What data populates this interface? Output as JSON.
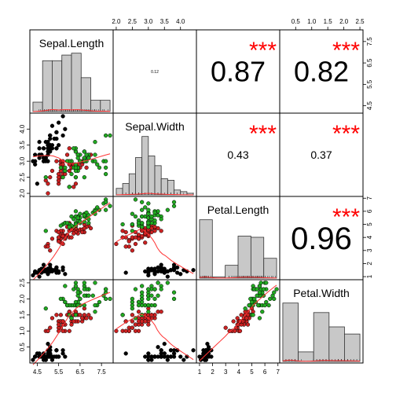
{
  "chart_data": {
    "type": "scatter-matrix",
    "title": "",
    "variables": [
      "Sepal.Length",
      "Sepal.Width",
      "Petal.Length",
      "Petal.Width"
    ],
    "ranges": [
      [
        4.3,
        7.9
      ],
      [
        2.0,
        4.4
      ],
      [
        1.0,
        6.9
      ],
      [
        0.1,
        2.5
      ]
    ],
    "ticks": [
      [
        "4.5",
        "5.5",
        "6.5",
        "7.5"
      ],
      [
        "2.0",
        "2.5",
        "3.0",
        "3.5",
        "4.0"
      ],
      [
        "1",
        "2",
        "3",
        "4",
        "5",
        "6",
        "7"
      ],
      [
        "0.5",
        "1.0",
        "1.5",
        "2.0",
        "2.5"
      ]
    ],
    "tick_values": [
      [
        4.5,
        5.5,
        6.5,
        7.5
      ],
      [
        2.0,
        2.5,
        3.0,
        3.5,
        4.0
      ],
      [
        1,
        2,
        3,
        4,
        5,
        6,
        7
      ],
      [
        0.5,
        1.0,
        1.5,
        2.0,
        2.5
      ]
    ],
    "group_colors": [
      "#000000",
      "#cc2222",
      "#22aa22"
    ],
    "fit_color": "#ff3333",
    "star_color": "#ff0000",
    "correlations": [
      {
        "row": 0,
        "col": 2,
        "value": "0.87",
        "stars": "***",
        "size": 36
      },
      {
        "row": 0,
        "col": 3,
        "value": "0.82",
        "stars": "***",
        "size": 36
      },
      {
        "row": 0,
        "col": 1,
        "value": "0.12",
        "stars": "",
        "size": 5
      },
      {
        "row": 1,
        "col": 2,
        "value": "0.43",
        "stars": "***",
        "size": 14
      },
      {
        "row": 1,
        "col": 3,
        "value": "0.37",
        "stars": "***",
        "size": 14
      },
      {
        "row": 2,
        "col": 3,
        "value": "0.96",
        "stars": "***",
        "size": 40
      }
    ],
    "histograms": [
      {
        "breaks": [
          4.0,
          4.5,
          5.0,
          5.5,
          6.0,
          6.5,
          7.0,
          7.5,
          8.0
        ],
        "counts": [
          5,
          27,
          27,
          30,
          31,
          18,
          6,
          6
        ]
      },
      {
        "breaks": [
          2.0,
          2.2,
          2.4,
          2.6,
          2.8,
          3.0,
          3.2,
          3.4,
          3.6,
          3.8,
          4.0,
          4.2,
          4.4
        ],
        "counts": [
          4,
          7,
          13,
          23,
          36,
          24,
          18,
          10,
          9,
          3,
          2,
          1
        ]
      },
      {
        "breaks": [
          1,
          2,
          3,
          4,
          5,
          6,
          7
        ],
        "counts": [
          50,
          1,
          11,
          36,
          35,
          17
        ]
      },
      {
        "breaks": [
          0.0,
          0.5,
          1.0,
          1.5,
          2.0,
          2.5
        ],
        "counts": [
          49,
          8,
          41,
          29,
          23
        ]
      }
    ],
    "iris": {
      "sepal_length": [
        5.1,
        4.9,
        4.7,
        4.6,
        5.0,
        5.4,
        4.6,
        5.0,
        4.4,
        4.9,
        5.4,
        4.8,
        4.8,
        4.3,
        5.8,
        5.7,
        5.4,
        5.1,
        5.7,
        5.1,
        5.4,
        5.1,
        4.6,
        5.1,
        4.8,
        5.0,
        5.0,
        5.2,
        5.2,
        4.7,
        4.8,
        5.4,
        5.2,
        5.5,
        4.9,
        5.0,
        5.5,
        4.9,
        4.4,
        5.1,
        5.0,
        4.5,
        4.4,
        5.0,
        5.1,
        4.8,
        5.1,
        4.6,
        5.3,
        5.0,
        7.0,
        6.4,
        6.9,
        5.5,
        6.5,
        5.7,
        6.3,
        4.9,
        6.6,
        5.2,
        5.0,
        5.9,
        6.0,
        6.1,
        5.6,
        6.7,
        5.6,
        5.8,
        6.2,
        5.6,
        5.9,
        6.1,
        6.3,
        6.1,
        6.4,
        6.6,
        6.8,
        6.7,
        6.0,
        5.7,
        5.5,
        5.5,
        5.8,
        6.0,
        5.4,
        6.0,
        6.7,
        6.3,
        5.6,
        5.5,
        5.5,
        6.1,
        5.8,
        5.0,
        5.6,
        5.7,
        5.7,
        6.2,
        5.1,
        5.7,
        6.3,
        5.8,
        7.1,
        6.3,
        6.5,
        7.6,
        4.9,
        7.3,
        6.7,
        7.2,
        6.5,
        6.4,
        6.8,
        5.7,
        5.8,
        6.4,
        6.5,
        7.7,
        7.7,
        6.0,
        6.9,
        5.6,
        7.7,
        6.3,
        6.7,
        7.2,
        6.2,
        6.1,
        6.4,
        7.2,
        7.4,
        7.9,
        6.4,
        6.3,
        6.1,
        7.7,
        6.3,
        6.4,
        6.0,
        6.9,
        6.7,
        6.9,
        5.8,
        6.8,
        6.7,
        6.7,
        6.3,
        6.5,
        6.2,
        5.9
      ],
      "sepal_width": [
        3.5,
        3.0,
        3.2,
        3.1,
        3.6,
        3.9,
        3.4,
        3.4,
        2.9,
        3.1,
        3.7,
        3.4,
        3.0,
        3.0,
        4.0,
        4.4,
        3.9,
        3.5,
        3.8,
        3.8,
        3.4,
        3.7,
        3.6,
        3.3,
        3.4,
        3.0,
        3.4,
        3.5,
        3.4,
        3.2,
        3.1,
        3.4,
        4.1,
        4.2,
        3.1,
        3.2,
        3.5,
        3.6,
        3.0,
        3.4,
        3.5,
        2.3,
        3.2,
        3.5,
        3.8,
        3.0,
        3.8,
        3.2,
        3.7,
        3.3,
        3.2,
        3.2,
        3.1,
        2.3,
        2.8,
        2.8,
        3.3,
        2.4,
        2.9,
        2.7,
        2.0,
        3.0,
        2.2,
        2.9,
        2.9,
        3.1,
        3.0,
        2.7,
        2.2,
        2.5,
        3.2,
        2.8,
        2.5,
        2.8,
        2.9,
        3.0,
        2.8,
        3.0,
        2.9,
        2.6,
        2.4,
        2.4,
        2.7,
        2.7,
        3.0,
        3.4,
        3.1,
        2.3,
        3.0,
        2.5,
        2.6,
        3.0,
        2.6,
        2.3,
        2.7,
        3.0,
        2.9,
        2.9,
        2.5,
        2.8,
        3.3,
        2.7,
        3.0,
        2.9,
        3.0,
        3.0,
        2.5,
        2.9,
        2.5,
        3.6,
        3.2,
        2.7,
        3.0,
        2.5,
        2.8,
        3.2,
        3.0,
        3.8,
        2.6,
        2.2,
        3.2,
        2.8,
        2.8,
        2.7,
        3.3,
        3.2,
        2.8,
        3.0,
        2.8,
        3.0,
        2.8,
        3.8,
        2.8,
        2.8,
        2.6,
        3.0,
        3.4,
        3.1,
        3.0,
        3.1,
        3.1,
        3.1,
        2.7,
        3.2,
        3.3,
        3.0,
        2.5,
        3.0,
        3.4,
        3.0
      ],
      "petal_length": [
        1.4,
        1.4,
        1.3,
        1.5,
        1.4,
        1.7,
        1.4,
        1.5,
        1.4,
        1.5,
        1.5,
        1.6,
        1.4,
        1.1,
        1.2,
        1.5,
        1.3,
        1.4,
        1.7,
        1.5,
        1.7,
        1.5,
        1.0,
        1.7,
        1.9,
        1.6,
        1.6,
        1.5,
        1.4,
        1.6,
        1.6,
        1.5,
        1.5,
        1.4,
        1.5,
        1.2,
        1.3,
        1.4,
        1.3,
        1.5,
        1.3,
        1.3,
        1.3,
        1.6,
        1.9,
        1.4,
        1.6,
        1.4,
        1.5,
        1.4,
        4.7,
        4.5,
        4.9,
        4.0,
        4.6,
        4.5,
        4.7,
        3.3,
        4.6,
        3.9,
        3.5,
        4.2,
        4.0,
        4.7,
        3.6,
        4.4,
        4.5,
        4.1,
        4.5,
        3.9,
        4.8,
        4.0,
        4.9,
        4.7,
        4.3,
        4.4,
        4.8,
        5.0,
        4.5,
        3.5,
        3.8,
        3.7,
        3.9,
        5.1,
        4.5,
        4.5,
        4.7,
        4.4,
        4.1,
        4.0,
        4.4,
        4.6,
        4.0,
        3.3,
        4.2,
        4.2,
        4.2,
        4.3,
        3.0,
        4.1,
        6.0,
        5.1,
        5.9,
        5.6,
        5.8,
        6.6,
        4.5,
        6.3,
        5.8,
        6.1,
        5.1,
        5.3,
        5.5,
        5.0,
        5.1,
        5.3,
        5.5,
        6.7,
        6.9,
        5.0,
        5.7,
        4.9,
        6.7,
        4.9,
        5.7,
        6.0,
        4.8,
        4.9,
        5.6,
        5.8,
        6.1,
        6.4,
        5.6,
        5.1,
        5.6,
        6.1,
        5.6,
        5.5,
        4.8,
        5.4,
        5.6,
        5.1,
        5.1,
        5.9,
        5.7,
        5.2,
        5.0,
        5.2,
        5.4,
        5.1
      ],
      "petal_width": [
        0.2,
        0.2,
        0.2,
        0.2,
        0.2,
        0.4,
        0.3,
        0.2,
        0.2,
        0.1,
        0.2,
        0.2,
        0.1,
        0.1,
        0.2,
        0.4,
        0.4,
        0.3,
        0.3,
        0.3,
        0.2,
        0.4,
        0.2,
        0.5,
        0.2,
        0.2,
        0.4,
        0.2,
        0.2,
        0.2,
        0.2,
        0.4,
        0.1,
        0.2,
        0.2,
        0.2,
        0.2,
        0.1,
        0.2,
        0.2,
        0.3,
        0.3,
        0.2,
        0.6,
        0.4,
        0.3,
        0.2,
        0.2,
        0.2,
        0.2,
        1.4,
        1.5,
        1.5,
        1.3,
        1.5,
        1.3,
        1.6,
        1.0,
        1.3,
        1.4,
        1.0,
        1.5,
        1.0,
        1.4,
        1.3,
        1.4,
        1.5,
        1.0,
        1.5,
        1.1,
        1.8,
        1.3,
        1.5,
        1.2,
        1.3,
        1.4,
        1.4,
        1.7,
        1.5,
        1.0,
        1.1,
        1.0,
        1.2,
        1.6,
        1.5,
        1.6,
        1.5,
        1.3,
        1.3,
        1.3,
        1.2,
        1.4,
        1.2,
        1.0,
        1.3,
        1.2,
        1.3,
        1.3,
        1.1,
        1.3,
        2.5,
        1.9,
        2.1,
        1.8,
        2.2,
        2.1,
        1.7,
        1.8,
        1.8,
        2.5,
        2.0,
        1.9,
        2.1,
        2.0,
        2.4,
        2.3,
        1.8,
        2.2,
        2.3,
        1.5,
        2.3,
        2.0,
        2.0,
        1.8,
        2.1,
        1.8,
        1.8,
        1.8,
        2.1,
        1.6,
        1.9,
        2.0,
        2.2,
        1.5,
        1.4,
        2.3,
        2.4,
        1.8,
        1.8,
        2.1,
        2.4,
        2.3,
        1.9,
        2.3,
        2.5,
        2.3,
        1.9,
        2.0,
        2.3,
        1.8
      ]
    }
  }
}
